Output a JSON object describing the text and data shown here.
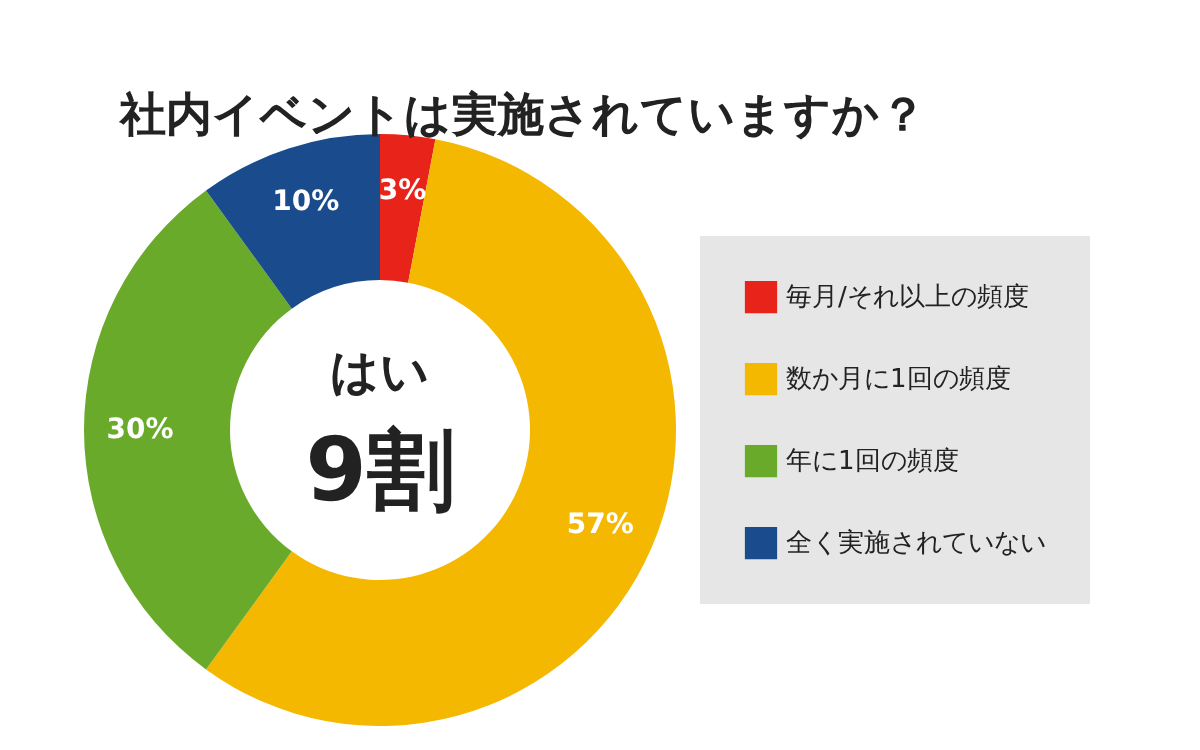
{
  "chart_data": {
    "type": "donut",
    "title": "社内イベントは実施されていますか？",
    "categories": [
      "毎月/それ以上の頻度",
      "数か月に1回の頻度",
      "年に1回の頻度",
      "全く実施されていない"
    ],
    "values": [
      3,
      57,
      30,
      10
    ],
    "colors": [
      "#e8231a",
      "#f5b800",
      "#6aaa2a",
      "#1a4b8c"
    ],
    "value_labels": [
      "3%",
      "57%",
      "30%",
      "10%"
    ],
    "annotations": [
      "はい",
      "9割"
    ],
    "legend": "right"
  }
}
